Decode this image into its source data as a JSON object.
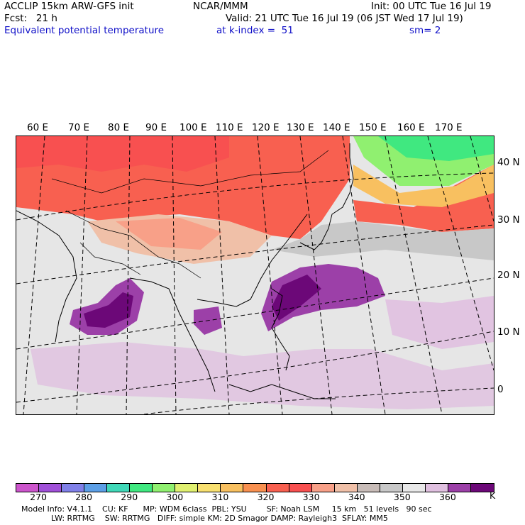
{
  "header": {
    "line1_left": "ACCLIP 15km ARW-GFS init",
    "line1_center": "NCAR/MMM",
    "line1_right": "Init: 00 UTC Tue 16 Jul 19",
    "line2_left": "Fcst:   21 h",
    "line2_right": "Valid: 21 UTC Tue 16 Jul 19 (06 JST Wed 17 Jul 19)",
    "line3_field": "Equivalent potential temperature",
    "line3_level": "at k-index =  51",
    "line3_smooth": "sm= 2"
  },
  "map": {
    "lon_labels": [
      "60 E",
      "70 E",
      "80 E",
      "90 E",
      "100 E",
      "110 E",
      "120 E",
      "130 E",
      "140 E",
      "150 E",
      "160 E",
      "170 E"
    ],
    "lat_labels": [
      "40 N",
      "30 N",
      "20 N",
      "10 N",
      "0"
    ]
  },
  "colorbar": {
    "colors": [
      "#cc55cc",
      "#a050d8",
      "#8080e8",
      "#5c9fe6",
      "#40d8b8",
      "#40e880",
      "#90f070",
      "#e0f070",
      "#f8e070",
      "#f8c060",
      "#f89050",
      "#f86050",
      "#f85050",
      "#f8a088",
      "#f0c0a8",
      "#c8bcb8",
      "#c8c8c8",
      "#e8e8e8",
      "#e0c0e0",
      "#9c40a8",
      "#6c0878"
    ],
    "labels": [
      "270",
      "280",
      "290",
      "300",
      "310",
      "320",
      "330",
      "340",
      "350",
      "360"
    ],
    "unit": "K"
  },
  "footer": {
    "line1": "Model Info: V4.1.1    CU: KF      MP: WDM 6class  PBL: YSU        SF: Noah LSM     15 km   51 levels   90 sec",
    "line2": "LW: RRTMG    SW: RRTMG   DIFF: simple KM: 2D Smagor DAMP: Rayleigh3  SFLAY: MM5"
  }
}
